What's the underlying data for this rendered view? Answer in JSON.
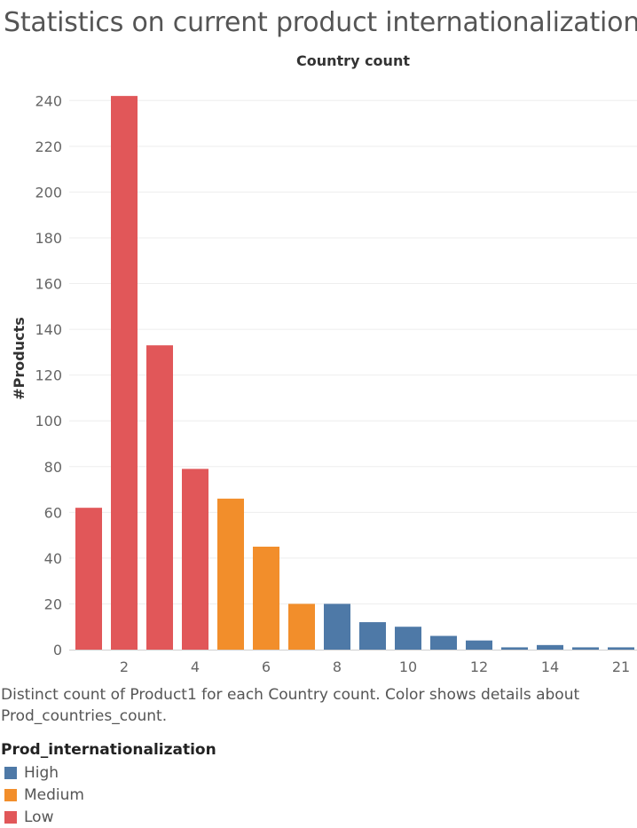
{
  "title": "Statistics on current product internationalization",
  "caption": "Distinct count of Product1 for each Country count.  Color shows details about Prod_countries_count.",
  "legend": {
    "title": "Prod_internationalization",
    "items": [
      {
        "label": "High",
        "color": "#4e79a7"
      },
      {
        "label": "Medium",
        "color": "#f28e2b"
      },
      {
        "label": "Low",
        "color": "#e15759"
      }
    ]
  },
  "chart_data": {
    "type": "bar",
    "xlabel": "Country count",
    "ylabel": "#Products",
    "ylim": [
      0,
      250
    ],
    "yticks": [
      0,
      20,
      40,
      60,
      80,
      100,
      120,
      140,
      160,
      180,
      200,
      220,
      240
    ],
    "grid": true,
    "legend_placement": "bottom-left",
    "categories": [
      "1",
      "2",
      "3",
      "4",
      "5",
      "6",
      "7",
      "8",
      "9",
      "10",
      "11",
      "12",
      "13",
      "14",
      "15",
      "21"
    ],
    "xtick_labels": [
      {
        "category_index": 1,
        "label": "2"
      },
      {
        "category_index": 3,
        "label": "4"
      },
      {
        "category_index": 5,
        "label": "6"
      },
      {
        "category_index": 7,
        "label": "8"
      },
      {
        "category_index": 9,
        "label": "10"
      },
      {
        "category_index": 11,
        "label": "12"
      },
      {
        "category_index": 13,
        "label": "14"
      },
      {
        "category_index": 15,
        "label": "21"
      }
    ],
    "values": [
      62,
      242,
      133,
      79,
      66,
      45,
      20,
      20,
      12,
      10,
      6,
      4,
      1,
      2,
      1,
      1
    ],
    "groups": [
      "Low",
      "Low",
      "Low",
      "Low",
      "Medium",
      "Medium",
      "Medium",
      "High",
      "High",
      "High",
      "High",
      "High",
      "High",
      "High",
      "High",
      "High"
    ]
  }
}
